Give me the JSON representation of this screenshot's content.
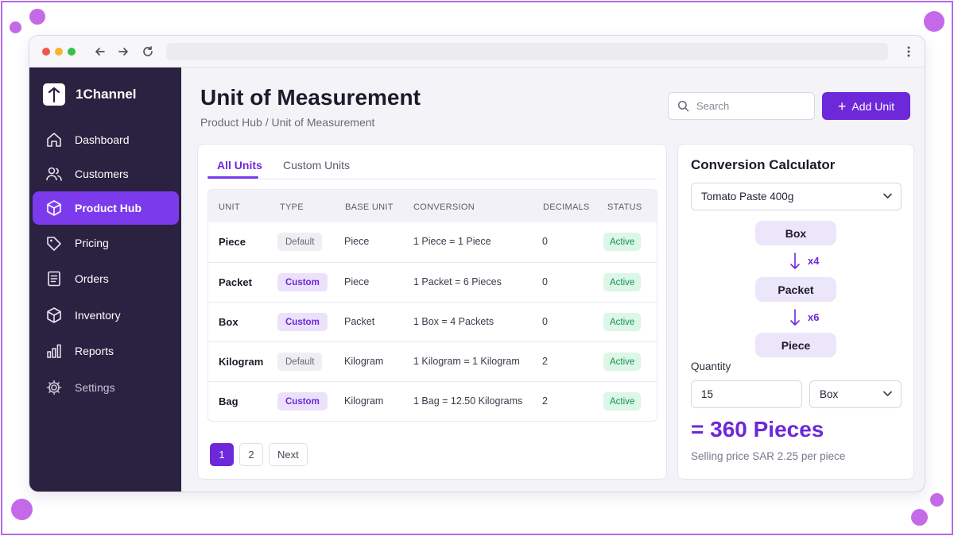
{
  "colors": {
    "accent": "#6d28d9",
    "accent_light": "#ece1fb",
    "sidebar_bg": "#2b2140",
    "success": "#15924f",
    "success_bg": "#dcf6e8",
    "frame_border": "#b26ae8"
  },
  "browser": {
    "traffic_lights": [
      "#f2544f",
      "#f6b52a",
      "#36c24a"
    ],
    "icons": [
      "back-arrow-icon",
      "forward-arrow-icon",
      "reload-icon",
      "kebab-menu-icon"
    ]
  },
  "sidebar": {
    "brand": "1Channel",
    "items": [
      {
        "label": "Dashboard",
        "icon": "home-icon"
      },
      {
        "label": "Customers",
        "icon": "users-icon"
      },
      {
        "label": "Product Hub",
        "icon": "cube-icon",
        "active": true
      },
      {
        "label": "Pricing",
        "icon": "tag-icon"
      },
      {
        "label": "Orders",
        "icon": "document-icon"
      },
      {
        "label": "Inventory",
        "icon": "box-icon"
      },
      {
        "label": "Reports",
        "icon": "bar-chart-icon"
      },
      {
        "label": "Settings",
        "icon": "gear-icon"
      }
    ]
  },
  "header": {
    "title": "Unit of Measurement",
    "breadcrumb": "Product Hub / Unit of Measurement",
    "search_placeholder": "Search",
    "add_button": "Add Unit"
  },
  "tabs": [
    {
      "label": "All Units",
      "active": true
    },
    {
      "label": "Custom Units",
      "active": false
    }
  ],
  "table": {
    "columns": [
      "UNIT",
      "TYPE",
      "BASE UNIT",
      "CONVERSION",
      "DECIMALS",
      "STATUS"
    ],
    "rows": [
      {
        "unit": "Piece",
        "type": "Default",
        "base": "Piece",
        "conversion": "1 Piece = 1 Piece",
        "decimals": "0",
        "status": "Active"
      },
      {
        "unit": "Packet",
        "type": "Custom",
        "base": "Piece",
        "conversion": "1 Packet = 6 Pieces",
        "decimals": "0",
        "status": "Active"
      },
      {
        "unit": "Box",
        "type": "Custom",
        "base": "Packet",
        "conversion": "1 Box = 4 Packets",
        "decimals": "0",
        "status": "Active"
      },
      {
        "unit": "Kilogram",
        "type": "Default",
        "base": "Kilogram",
        "conversion": "1 Kilogram = 1 Kilogram",
        "decimals": "2",
        "status": "Active"
      },
      {
        "unit": "Bag",
        "type": "Custom",
        "base": "Kilogram",
        "conversion": "1 Bag = 12.50 Kilograms",
        "decimals": "2",
        "status": "Active"
      }
    ]
  },
  "pagination": {
    "pages": [
      "1",
      "2"
    ],
    "current": "1",
    "next": "Next"
  },
  "calculator": {
    "title": "Conversion Calculator",
    "product": "Tomato Paste 400g",
    "chain": [
      {
        "unit": "Box",
        "factor": "x4"
      },
      {
        "unit": "Packet",
        "factor": "x6"
      },
      {
        "unit": "Piece",
        "factor": ""
      }
    ],
    "quantity_label": "Quantity",
    "quantity_value": "15",
    "quantity_unit": "Box",
    "result": "= 360 Pieces",
    "price_note": "Selling price SAR 2.25 per piece"
  }
}
